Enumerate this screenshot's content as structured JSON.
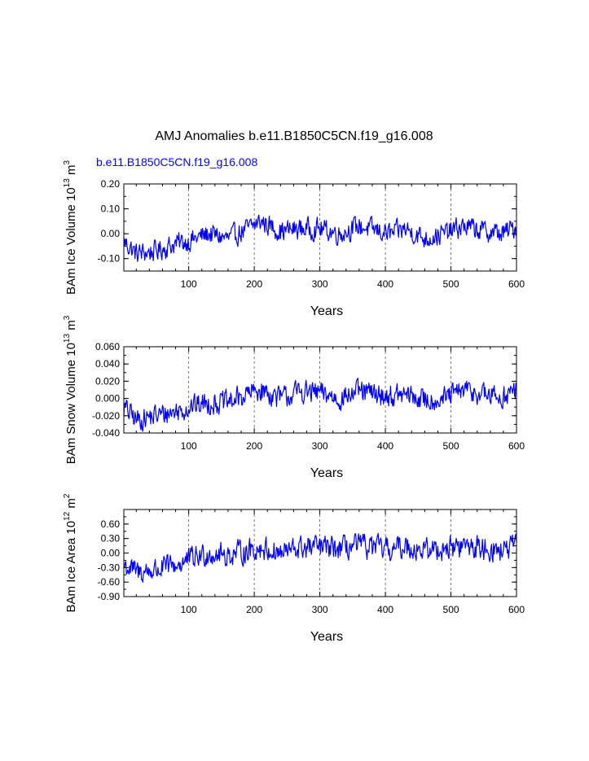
{
  "title": "AMJ Anomalies b.e11.B1850C5CN.f19_g16.008",
  "case_label": "b.e11.B1850C5CN.f19_g16.008",
  "colors": {
    "series": "#0000ff",
    "axis": "#000000",
    "grid": "#555555"
  },
  "chart_data": [
    {
      "type": "line",
      "ylabel_main": "BAm Ice Volume 10",
      "ylabel_exp": "13",
      "ylabel_unit": " m",
      "ylabel_unit_exp": "3",
      "xlabel": "Years",
      "xlim": [
        1,
        600
      ],
      "ylim": [
        -0.15,
        0.2
      ],
      "xticks": [
        100,
        200,
        300,
        400,
        500,
        600
      ],
      "yticks": [
        -0.1,
        0.0,
        0.1,
        0.2
      ],
      "yticklabels": [
        "-0.10",
        "0.00",
        "0.10",
        "0.20"
      ],
      "grid_x": "dashed vertical at 100-year ticks",
      "anchors": [
        [
          1,
          -0.03
        ],
        [
          20,
          -0.08
        ],
        [
          50,
          -0.07
        ],
        [
          80,
          -0.04
        ],
        [
          100,
          -0.03
        ],
        [
          130,
          0.0
        ],
        [
          160,
          -0.02
        ],
        [
          190,
          0.02
        ],
        [
          210,
          0.05
        ],
        [
          240,
          0.01
        ],
        [
          270,
          0.02
        ],
        [
          300,
          0.02
        ],
        [
          330,
          0.0
        ],
        [
          360,
          0.03
        ],
        [
          390,
          0.01
        ],
        [
          410,
          0.0
        ],
        [
          430,
          0.02
        ],
        [
          460,
          -0.02
        ],
        [
          490,
          0.0
        ],
        [
          520,
          0.03
        ],
        [
          550,
          0.01
        ],
        [
          580,
          0.0
        ],
        [
          600,
          0.03
        ]
      ],
      "amplitude": 0.045,
      "series": [
        {
          "color": "#0000ff"
        }
      ]
    },
    {
      "type": "line",
      "ylabel_main": "BAm Snow Volume 10",
      "ylabel_exp": "13",
      "ylabel_unit": " m",
      "ylabel_unit_exp": "3",
      "xlabel": "Years",
      "xlim": [
        1,
        600
      ],
      "ylim": [
        -0.04,
        0.06
      ],
      "xticks": [
        100,
        200,
        300,
        400,
        500,
        600
      ],
      "yticks": [
        -0.04,
        -0.02,
        0.0,
        0.02,
        0.04,
        0.06
      ],
      "yticklabels": [
        "-0.040",
        "-0.020",
        "0.000",
        "0.020",
        "0.040",
        "0.060"
      ],
      "grid_x": "dashed vertical at 100-year ticks",
      "anchors": [
        [
          1,
          -0.01
        ],
        [
          20,
          -0.025
        ],
        [
          50,
          -0.02
        ],
        [
          80,
          -0.015
        ],
        [
          100,
          -0.01
        ],
        [
          130,
          -0.005
        ],
        [
          160,
          -0.005
        ],
        [
          190,
          0.005
        ],
        [
          210,
          0.01
        ],
        [
          240,
          0.0
        ],
        [
          270,
          0.008
        ],
        [
          300,
          0.006
        ],
        [
          330,
          0.0
        ],
        [
          360,
          0.008
        ],
        [
          390,
          0.004
        ],
        [
          410,
          0.002
        ],
        [
          430,
          0.004
        ],
        [
          460,
          -0.002
        ],
        [
          490,
          0.0
        ],
        [
          520,
          0.01
        ],
        [
          550,
          0.004
        ],
        [
          580,
          0.002
        ],
        [
          600,
          0.01
        ]
      ],
      "amplitude": 0.014,
      "series": [
        {
          "color": "#0000ff"
        }
      ]
    },
    {
      "type": "line",
      "ylabel_main": "BAm Ice Area 10",
      "ylabel_exp": "12",
      "ylabel_unit": " m",
      "ylabel_unit_exp": "2",
      "xlabel": "Years",
      "xlim": [
        1,
        600
      ],
      "ylim": [
        -0.9,
        0.9
      ],
      "xticks": [
        100,
        200,
        300,
        400,
        500,
        600
      ],
      "yticks": [
        -0.9,
        -0.6,
        -0.3,
        0.0,
        0.3,
        0.6
      ],
      "yticklabels": [
        "-0.90",
        "-0.60",
        "-0.30",
        "0.00",
        "0.30",
        "0.60"
      ],
      "grid_x": "dashed vertical at 100-year ticks",
      "anchors": [
        [
          1,
          -0.25
        ],
        [
          20,
          -0.4
        ],
        [
          50,
          -0.35
        ],
        [
          80,
          -0.25
        ],
        [
          100,
          -0.15
        ],
        [
          130,
          0.0
        ],
        [
          160,
          -0.05
        ],
        [
          190,
          0.05
        ],
        [
          210,
          0.1
        ],
        [
          240,
          0.0
        ],
        [
          270,
          0.1
        ],
        [
          300,
          0.12
        ],
        [
          330,
          0.08
        ],
        [
          360,
          0.15
        ],
        [
          390,
          0.1
        ],
        [
          410,
          0.05
        ],
        [
          430,
          0.15
        ],
        [
          460,
          0.05
        ],
        [
          490,
          0.1
        ],
        [
          520,
          0.15
        ],
        [
          550,
          0.1
        ],
        [
          580,
          0.05
        ],
        [
          600,
          0.15
        ]
      ],
      "amplitude": 0.26,
      "series": [
        {
          "color": "#0000ff"
        }
      ]
    }
  ]
}
